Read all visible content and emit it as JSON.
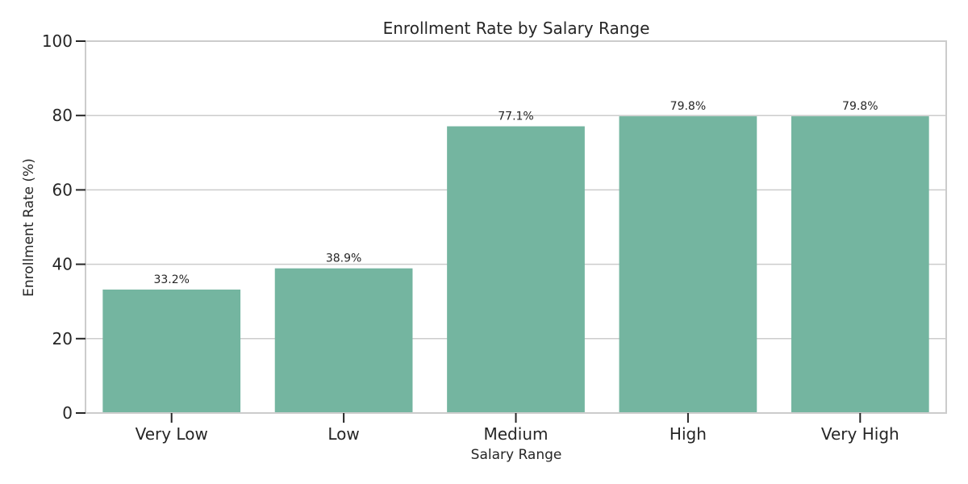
{
  "chart_data": {
    "type": "bar",
    "title": "Enrollment Rate by Salary Range",
    "xlabel": "Salary Range",
    "ylabel": "Enrollment Rate (%)",
    "categories": [
      "Very Low",
      "Low",
      "Medium",
      "High",
      "Very High"
    ],
    "values": [
      33.2,
      38.9,
      77.1,
      79.8,
      79.8
    ],
    "data_labels": [
      "33.2%",
      "38.9%",
      "77.1%",
      "79.8%",
      "79.8%"
    ],
    "ylim": [
      0,
      100
    ],
    "yticks": [
      0,
      20,
      40,
      60,
      80,
      100
    ],
    "grid": "horizontal",
    "legend": "none",
    "colors": {
      "bar": "#74b5a0",
      "grid": "#cccccc",
      "axis": "#cccccc",
      "text": "#262626"
    }
  }
}
